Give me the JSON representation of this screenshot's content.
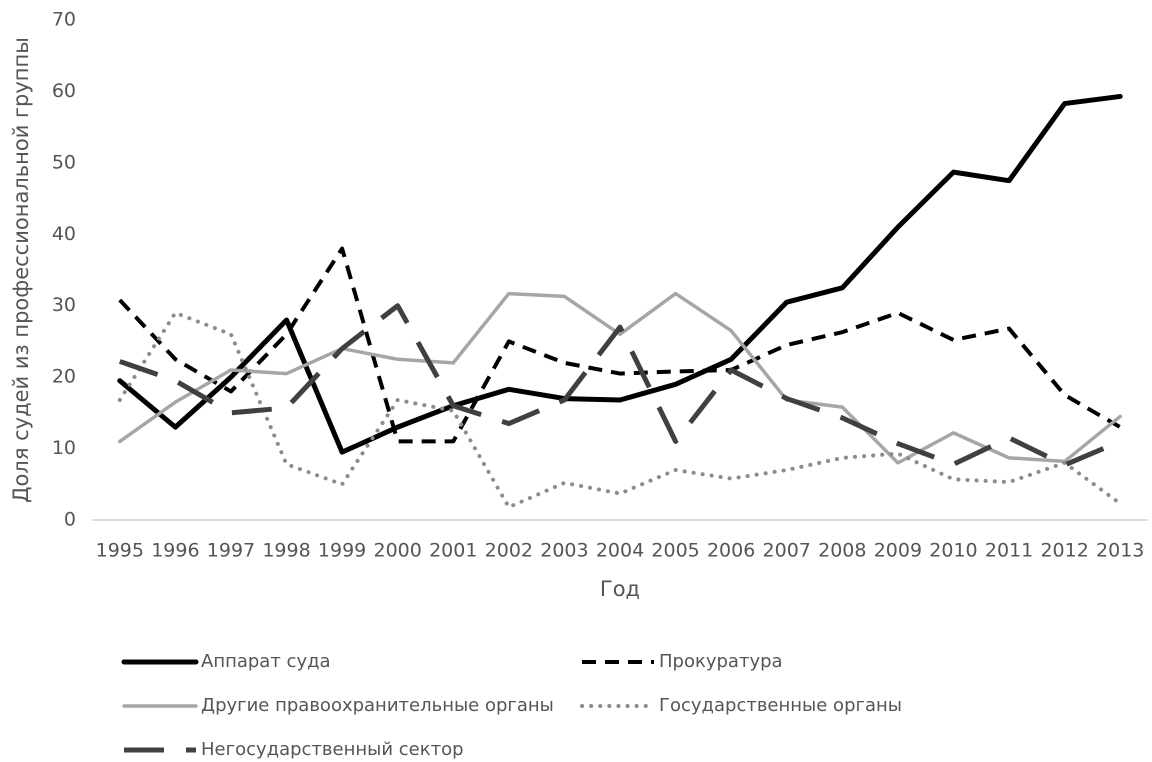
{
  "chart_data": {
    "type": "line",
    "x_label": "Год",
    "y_label": "Доля судей из профессиональной группы",
    "categories": [
      "1995",
      "1996",
      "1997",
      "1998",
      "1999",
      "2000",
      "2001",
      "2002",
      "2003",
      "2004",
      "2005",
      "2006",
      "2007",
      "2008",
      "2009",
      "2010",
      "2011",
      "2012",
      "2013"
    ],
    "ylim": [
      0,
      70
    ],
    "yticks": [
      0,
      10,
      20,
      30,
      40,
      50,
      60,
      70
    ],
    "grid": false,
    "legend": "bottom",
    "series": [
      {
        "name": "Аппарат суда",
        "color": "#000000",
        "dash": "solid",
        "values": [
          19.5,
          13,
          20,
          28,
          9.5,
          13,
          16,
          18.3,
          17,
          16.8,
          19,
          22.5,
          30.5,
          32.5,
          41,
          48.7,
          47.5,
          58.3,
          59.3
        ]
      },
      {
        "name": "Прокуратура",
        "color": "#000000",
        "dash": "dashed",
        "values": [
          30.8,
          22.5,
          18,
          26,
          38,
          11,
          11,
          25,
          22,
          20.5,
          20.8,
          21,
          24.5,
          26.3,
          29,
          25.2,
          26.8,
          17.5,
          13
        ]
      },
      {
        "name": "Другие правоохранительные органы",
        "color": "#a6a6a6",
        "dash": "solid",
        "values": [
          11,
          16.5,
          21,
          20.5,
          24,
          22.5,
          22,
          31.7,
          31.3,
          26,
          31.7,
          26.5,
          16.8,
          15.8,
          8,
          12.2,
          8.7,
          8.2,
          14.5
        ]
      },
      {
        "name": "Государственные органы",
        "color": "#8c8c8c",
        "dash": "dotted",
        "values": [
          16.8,
          29,
          26,
          7.8,
          5,
          16.8,
          15.3,
          1.8,
          5.2,
          3.7,
          7,
          5.8,
          7,
          8.7,
          9.3,
          5.7,
          5.3,
          8,
          2.3
        ]
      },
      {
        "name": "Негосударственный сектор",
        "color": "#404040",
        "dash": "longdash",
        "values": [
          22.2,
          19.5,
          15,
          15.7,
          24,
          30,
          16,
          13.5,
          16.8,
          27,
          11,
          21,
          17,
          14.3,
          10.7,
          7.8,
          11.5,
          7.7,
          11
        ]
      }
    ]
  }
}
